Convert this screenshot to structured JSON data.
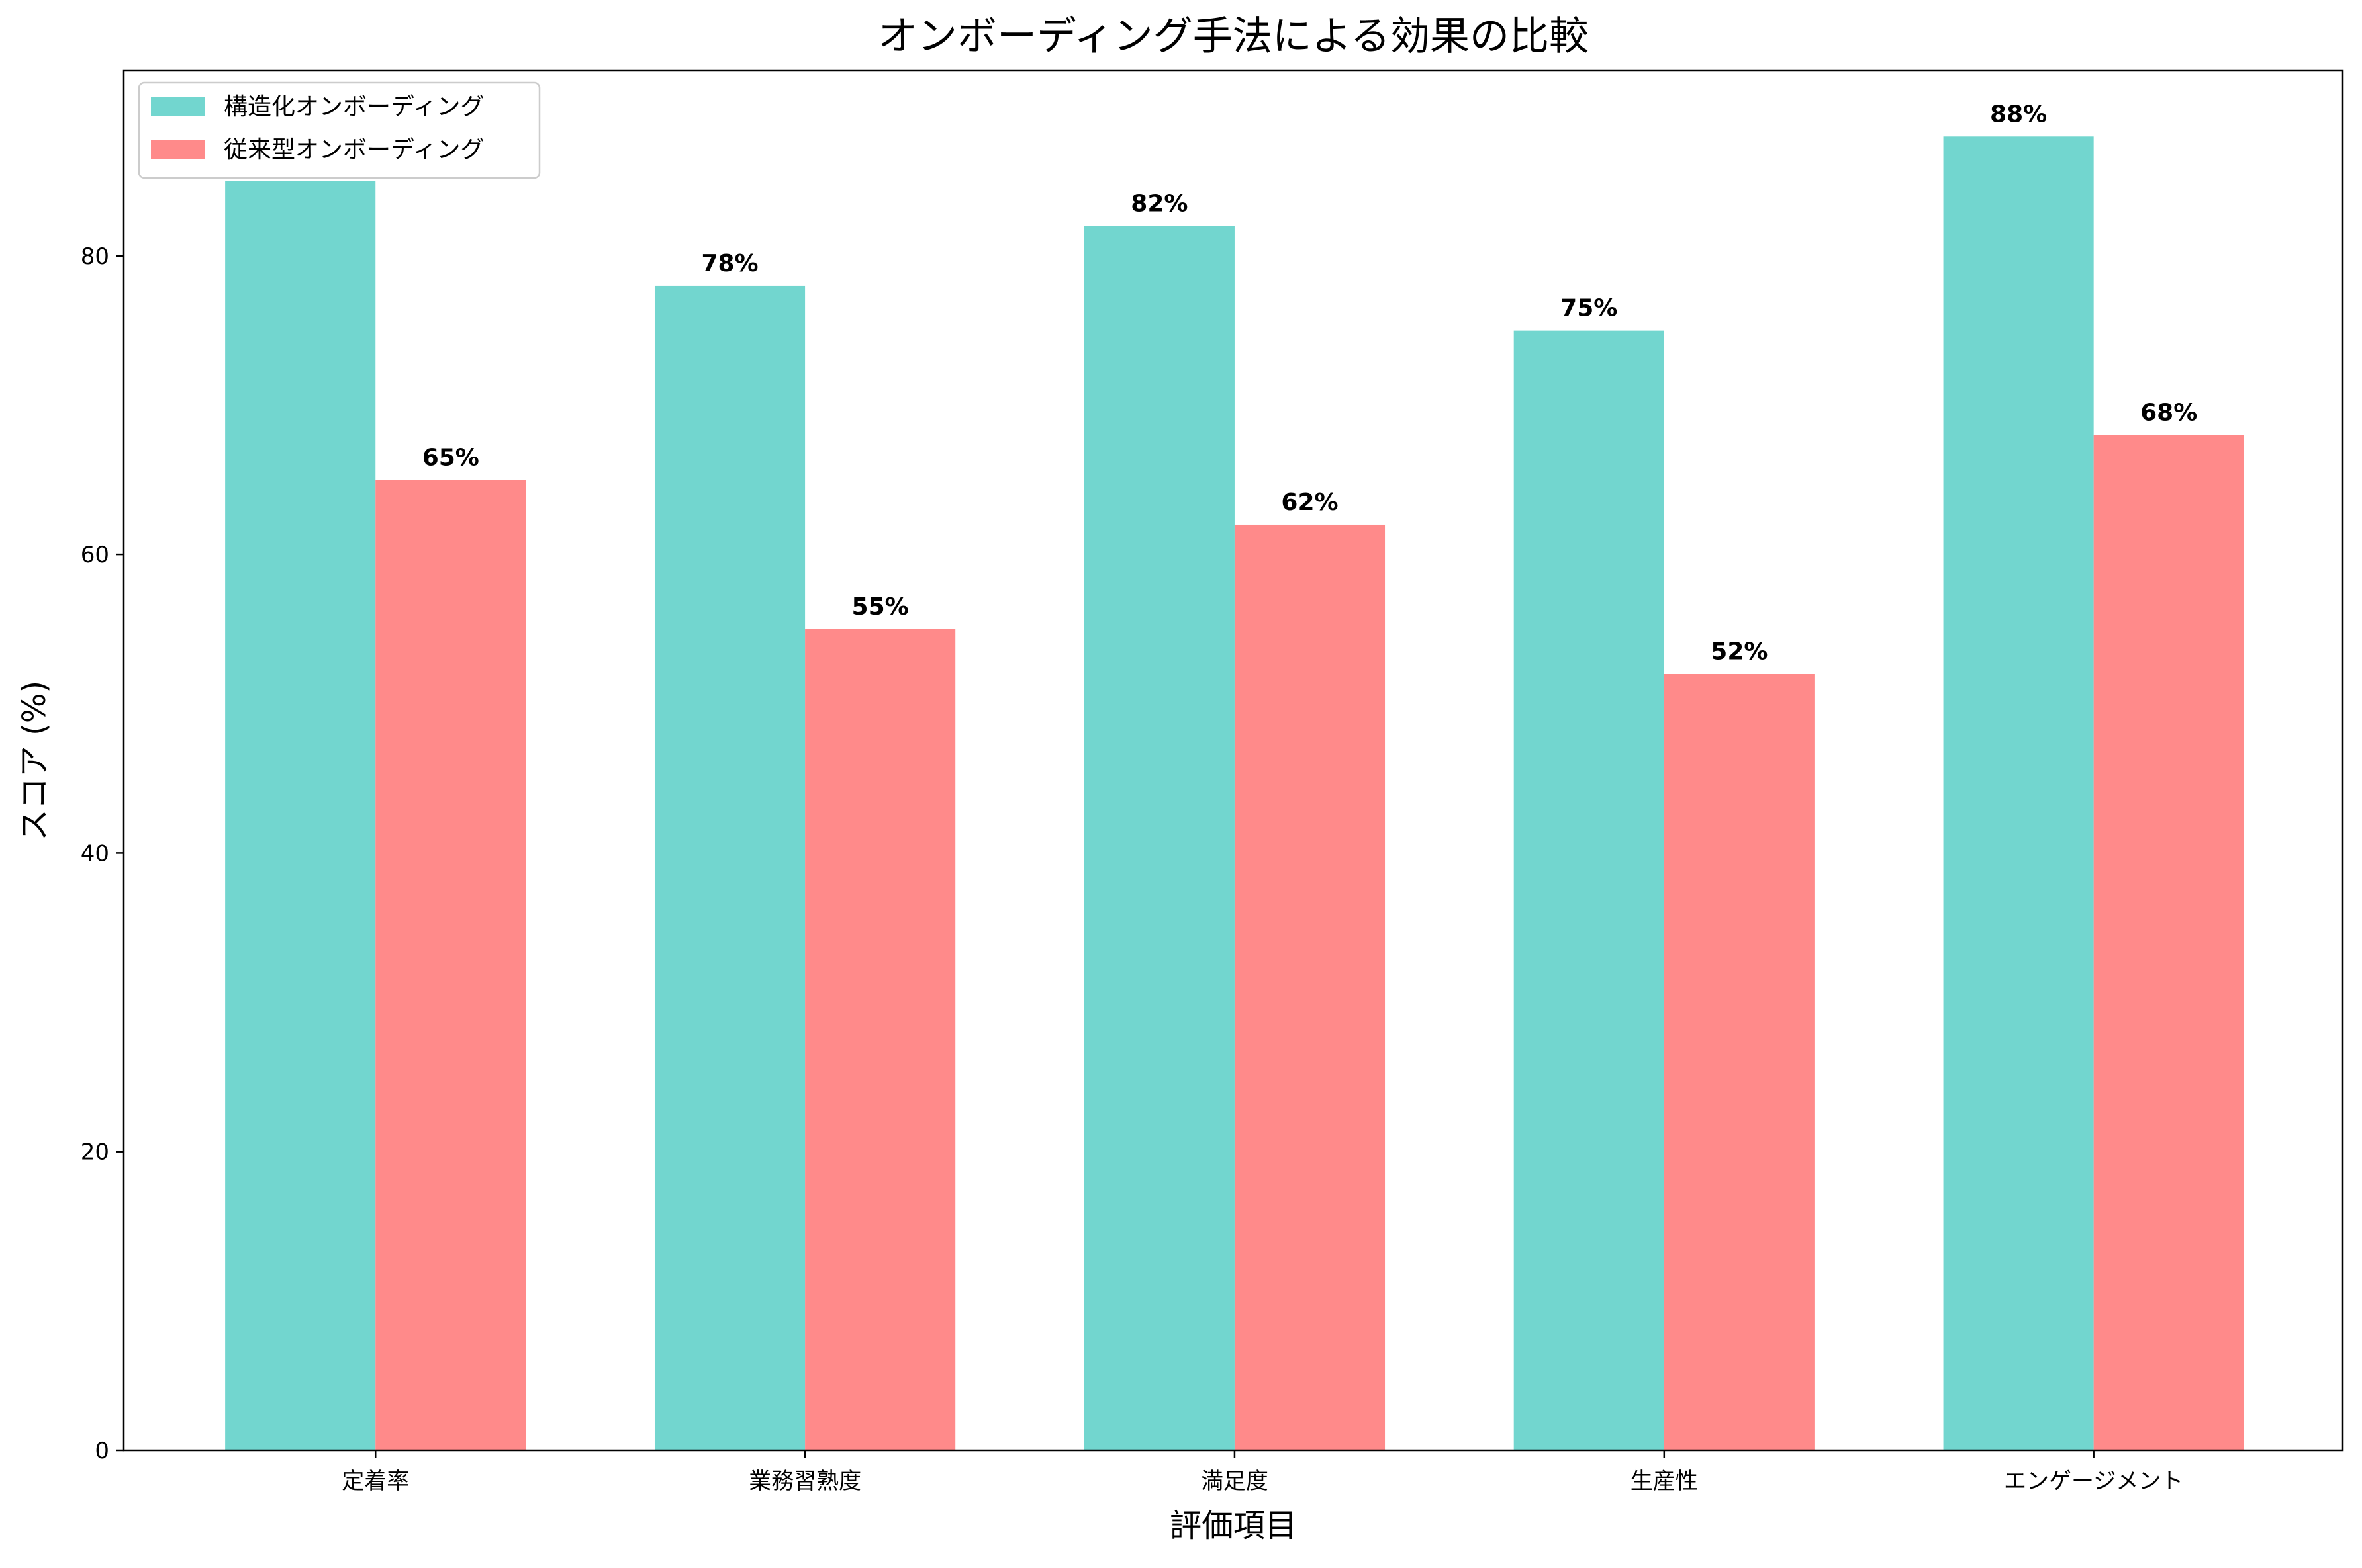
{
  "chart_data": {
    "type": "bar",
    "title": "オンボーディング手法による効果の比較",
    "xlabel": "評価項目",
    "ylabel": "スコア (%)",
    "categories": [
      "定着率",
      "業務習熟度",
      "満足度",
      "生産性",
      "エンゲージメント"
    ],
    "series": [
      {
        "name": "構造化オンボーディング",
        "color": "#72D6CF",
        "values": [
          85,
          78,
          82,
          75,
          88
        ]
      },
      {
        "name": "従来型オンボーディング",
        "color": "#FF8A8A",
        "values": [
          65,
          55,
          62,
          52,
          68
        ]
      }
    ],
    "ylim": [
      0,
      92.4
    ],
    "yticks": [
      0,
      20,
      40,
      60,
      80
    ],
    "value_label_suffix": "%",
    "grid": false,
    "legend": "top-left"
  }
}
